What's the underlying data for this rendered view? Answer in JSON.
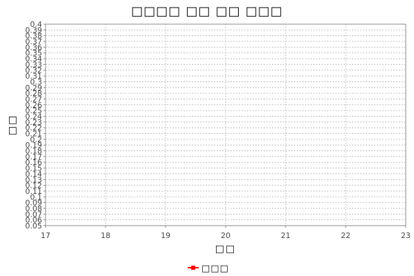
{
  "chart_data": {
    "type": "line",
    "title": "□□□□ □□ □□ □□□",
    "xlabel": "□□",
    "ylabel": "□□",
    "xlim": [
      17,
      23
    ],
    "ylim": [
      0.05,
      0.4
    ],
    "x_ticks": [
      "17",
      "18",
      "19",
      "20",
      "21",
      "22",
      "23"
    ],
    "y_ticks": [
      "0.05",
      "0.06",
      "0.07",
      "0.08",
      "0.09",
      "0.1",
      "0.11",
      "0.12",
      "0.13",
      "0.14",
      "0.15",
      "0.16",
      "0.17",
      "0.18",
      "0.19",
      "0.2",
      "0.21",
      "0.22",
      "0.23",
      "0.24",
      "0.25",
      "0.26",
      "0.27",
      "0.28",
      "0.29",
      "0.3",
      "0.31",
      "0.32",
      "0.33",
      "0.34",
      "0.35",
      "0.36",
      "0.37",
      "0.38",
      "0.39",
      "0.4"
    ],
    "grid": true,
    "legend_position": "bottom-center",
    "series": [
      {
        "name": "□□□",
        "color": "#ff0000",
        "points": []
      }
    ]
  }
}
